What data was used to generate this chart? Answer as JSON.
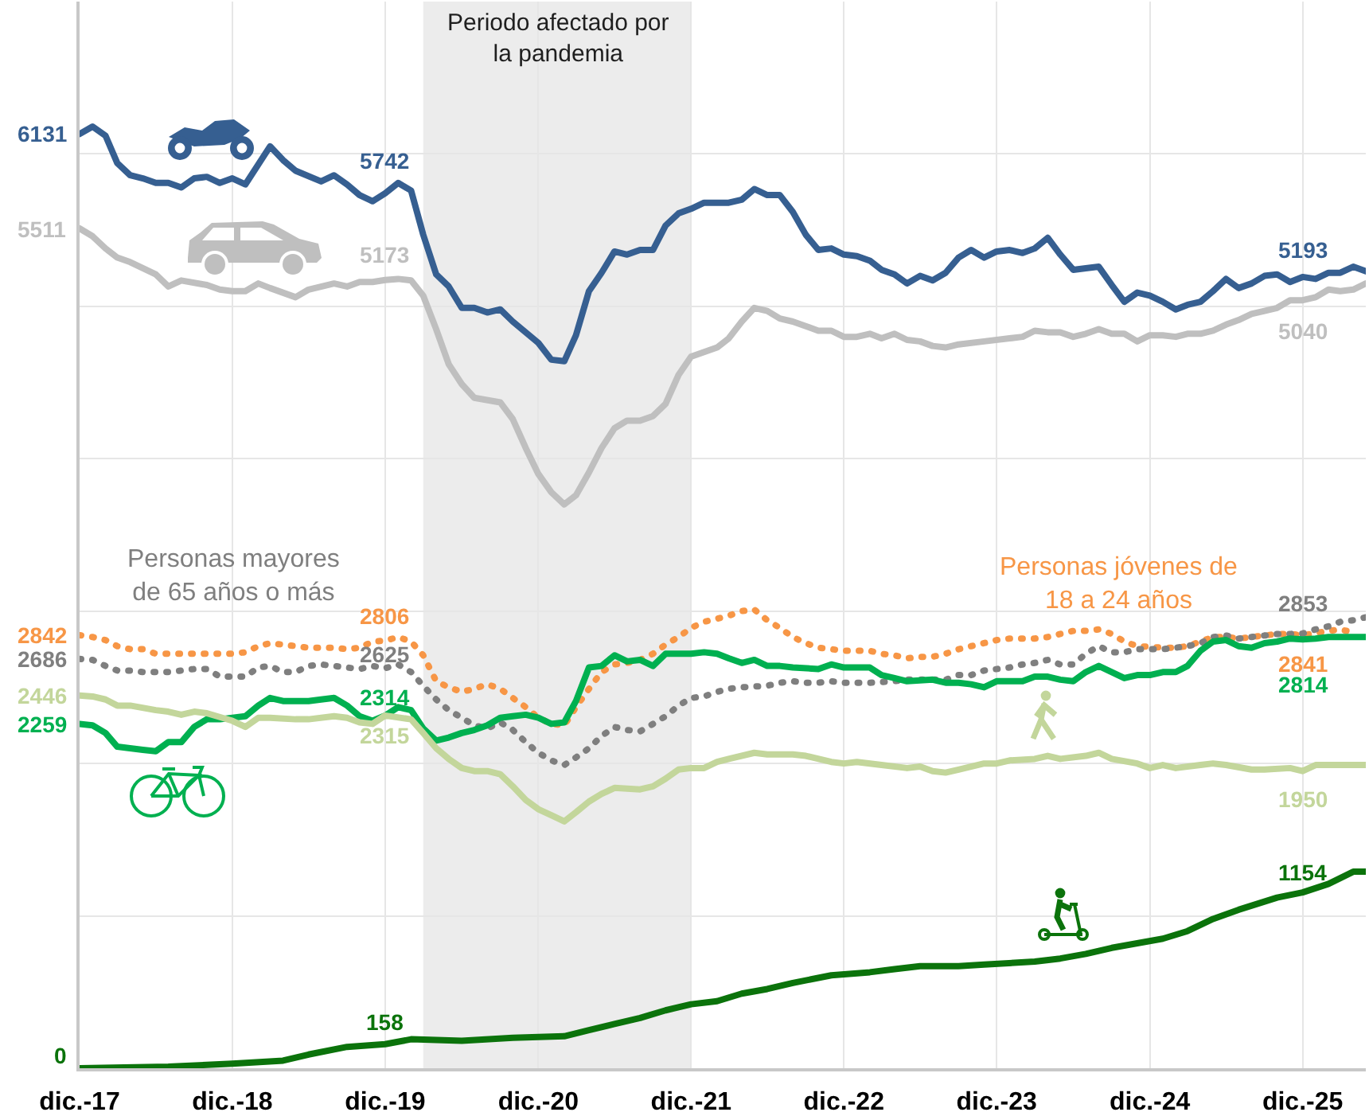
{
  "chart_data": {
    "type": "line",
    "xlim": [
      "2017-12",
      "2026-05"
    ],
    "xticks": [
      {
        "value": "2017-12",
        "label": "dic.-17"
      },
      {
        "value": "2018-12",
        "label": "dic.-18"
      },
      {
        "value": "2019-12",
        "label": "dic.-19"
      },
      {
        "value": "2020-12",
        "label": "dic.-20"
      },
      {
        "value": "2021-12",
        "label": "dic.-21"
      },
      {
        "value": "2022-12",
        "label": "dic.-22"
      },
      {
        "value": "2023-12",
        "label": "dic.-23"
      },
      {
        "value": "2024-12",
        "label": "dic.-24"
      },
      {
        "value": "2025-12",
        "label": "dic.-25"
      }
    ],
    "ylim": [
      0,
      7000
    ],
    "yticks": [
      {
        "value": 0,
        "label": null
      },
      {
        "value": 1000,
        "label": null
      },
      {
        "value": 2000,
        "label": null
      },
      {
        "value": 3000,
        "label": null
      },
      {
        "value": 4000,
        "label": null
      },
      {
        "value": 5000,
        "label": null
      },
      {
        "value": 6000,
        "label": null
      },
      {
        "value": 7000,
        "label": null
      }
    ],
    "tick_labels": "x",
    "grid": true,
    "bands": [
      {
        "axis": "x",
        "from": "2020-03",
        "to": "2021-12",
        "label": "Periodo afectado por\nla pandemia",
        "color": "#ececec"
      }
    ],
    "series": [
      {
        "color": "#365f91",
        "line_style": "solid",
        "x": [
          "2017-12",
          "2018-01",
          "2018-02",
          "2018-03",
          "2018-04",
          "2018-05",
          "2018-06",
          "2018-07",
          "2018-08",
          "2018-09",
          "2018-10",
          "2018-11",
          "2018-12",
          "2019-01",
          "2019-03",
          "2019-04",
          "2019-05",
          "2019-07",
          "2019-08",
          "2019-09",
          "2019-10",
          "2019-11",
          "2019-12",
          "2020-01",
          "2020-02",
          "2020-03",
          "2020-04",
          "2020-05",
          "2020-06",
          "2020-07",
          "2020-08",
          "2020-09",
          "2020-10",
          "2020-12",
          "2021-01",
          "2021-02",
          "2021-03",
          "2021-04",
          "2021-05",
          "2021-06",
          "2021-07",
          "2021-08",
          "2021-09",
          "2021-10",
          "2021-11",
          "2021-12",
          "2022-01",
          "2022-03",
          "2022-04",
          "2022-05",
          "2022-06",
          "2022-07",
          "2022-08",
          "2022-09",
          "2022-10",
          "2022-11",
          "2022-12",
          "2023-01",
          "2023-02",
          "2023-03",
          "2023-04",
          "2023-05",
          "2023-06",
          "2023-07",
          "2023-08",
          "2023-09",
          "2023-10",
          "2023-11",
          "2023-12",
          "2024-01",
          "2024-02",
          "2024-03",
          "2024-04",
          "2024-05",
          "2024-06",
          "2024-07",
          "2024-08",
          "2024-09",
          "2024-10",
          "2024-11",
          "2024-12",
          "2025-01",
          "2025-02",
          "2025-03",
          "2025-04",
          "2025-05",
          "2025-06",
          "2025-07",
          "2025-08",
          "2025-09",
          "2025-10",
          "2025-11",
          "2025-12",
          "2026-01",
          "2026-02",
          "2026-03",
          "2026-04",
          "2026-05"
        ],
        "values": [
          6131,
          6180,
          6120,
          5940,
          5860,
          5840,
          5810,
          5810,
          5780,
          5840,
          5850,
          5810,
          5840,
          5800,
          6050,
          5960,
          5890,
          5820,
          5860,
          5800,
          5730,
          5690,
          5742,
          5810,
          5760,
          5470,
          5210,
          5130,
          4990,
          4990,
          4960,
          4980,
          4900,
          4760,
          4650,
          4640,
          4810,
          5100,
          5220,
          5360,
          5340,
          5370,
          5370,
          5530,
          5610,
          5640,
          5680,
          5680,
          5700,
          5770,
          5730,
          5730,
          5620,
          5470,
          5370,
          5380,
          5340,
          5330,
          5300,
          5240,
          5210,
          5150,
          5200,
          5170,
          5220,
          5320,
          5370,
          5320,
          5360,
          5370,
          5350,
          5380,
          5450,
          5340,
          5240,
          5250,
          5260,
          5140,
          5030,
          5090,
          5070,
          5030,
          4980,
          5010,
          5030,
          5100,
          5180,
          5120,
          5150,
          5200,
          5210,
          5160,
          5193,
          5180,
          5220,
          5220,
          5260,
          5230
        ],
        "value_labels": [
          "6131",
          null,
          null,
          null,
          null,
          null,
          null,
          null,
          null,
          null,
          null,
          null,
          null,
          null,
          null,
          null,
          null,
          null,
          null,
          null,
          null,
          null,
          "5742",
          null,
          null,
          null,
          null,
          null,
          null,
          null,
          null,
          null,
          null,
          null,
          null,
          null,
          null,
          null,
          null,
          null,
          null,
          null,
          null,
          null,
          null,
          null,
          null,
          null,
          null,
          null,
          null,
          null,
          null,
          null,
          null,
          null,
          null,
          null,
          null,
          null,
          null,
          null,
          null,
          null,
          null,
          null,
          null,
          null,
          null,
          null,
          null,
          null,
          null,
          null,
          null,
          null,
          null,
          null,
          null,
          null,
          null,
          null,
          null,
          null,
          null,
          null,
          null,
          null,
          null,
          null,
          null,
          null,
          "5193",
          null,
          null,
          null,
          null,
          null
        ]
      },
      {
        "color": "#bfbfbf",
        "line_style": "solid",
        "x": [
          "2017-12",
          "2018-01",
          "2018-02",
          "2018-03",
          "2018-04",
          "2018-06",
          "2018-07",
          "2018-08",
          "2018-10",
          "2018-11",
          "2018-12",
          "2019-01",
          "2019-02",
          "2019-03",
          "2019-05",
          "2019-06",
          "2019-08",
          "2019-09",
          "2019-10",
          "2019-11",
          "2019-12",
          "2020-01",
          "2020-02",
          "2020-03",
          "2020-04",
          "2020-05",
          "2020-06",
          "2020-07",
          "2020-09",
          "2020-10",
          "2020-11",
          "2020-12",
          "2021-01",
          "2021-02",
          "2021-03",
          "2021-04",
          "2021-05",
          "2021-06",
          "2021-07",
          "2021-08",
          "2021-09",
          "2021-10",
          "2021-11",
          "2021-12",
          "2022-02",
          "2022-03",
          "2022-04",
          "2022-05",
          "2022-06",
          "2022-07",
          "2022-08",
          "2022-09",
          "2022-10",
          "2022-11",
          "2022-12",
          "2023-01",
          "2023-02",
          "2023-03",
          "2023-04",
          "2023-05",
          "2023-06",
          "2023-07",
          "2023-08",
          "2023-09",
          "2023-11",
          "2024-01",
          "2024-02",
          "2024-03",
          "2024-04",
          "2024-05",
          "2024-06",
          "2024-07",
          "2024-08",
          "2024-09",
          "2024-10",
          "2024-11",
          "2024-12",
          "2025-01",
          "2025-02",
          "2025-03",
          "2025-04",
          "2025-05",
          "2025-06",
          "2025-07",
          "2025-08",
          "2025-09",
          "2025-10",
          "2025-11",
          "2025-12",
          "2026-01",
          "2026-02",
          "2026-03",
          "2026-04",
          "2026-05"
        ],
        "values": [
          5511,
          5460,
          5380,
          5320,
          5290,
          5210,
          5130,
          5170,
          5140,
          5110,
          5100,
          5100,
          5150,
          5120,
          5060,
          5110,
          5150,
          5130,
          5160,
          5160,
          5173,
          5180,
          5170,
          5070,
          4850,
          4620,
          4490,
          4400,
          4370,
          4260,
          4070,
          3900,
          3780,
          3700,
          3760,
          3910,
          4070,
          4200,
          4250,
          4250,
          4280,
          4360,
          4550,
          4670,
          4730,
          4790,
          4900,
          4990,
          4970,
          4920,
          4900,
          4870,
          4840,
          4840,
          4800,
          4800,
          4820,
          4790,
          4820,
          4780,
          4770,
          4740,
          4730,
          4750,
          4770,
          4790,
          4800,
          4840,
          4830,
          4830,
          4800,
          4820,
          4850,
          4820,
          4820,
          4770,
          4810,
          4810,
          4800,
          4820,
          4820,
          4840,
          4880,
          4910,
          4950,
          4970,
          4990,
          5040,
          5040,
          5060,
          5110,
          5100,
          5110,
          5150
        ],
        "value_labels": [
          "5511",
          null,
          null,
          null,
          null,
          null,
          null,
          null,
          null,
          null,
          null,
          null,
          null,
          null,
          null,
          null,
          null,
          null,
          null,
          null,
          "5173",
          null,
          null,
          null,
          null,
          null,
          null,
          null,
          null,
          null,
          null,
          null,
          null,
          null,
          null,
          null,
          null,
          null,
          null,
          null,
          null,
          null,
          null,
          null,
          null,
          null,
          null,
          null,
          null,
          null,
          null,
          null,
          null,
          null,
          null,
          null,
          null,
          null,
          null,
          null,
          null,
          null,
          null,
          null,
          null,
          null,
          null,
          null,
          null,
          null,
          null,
          null,
          null,
          null,
          null,
          null,
          null,
          null,
          null,
          null,
          null,
          null,
          null,
          null,
          null,
          null,
          null,
          null,
          "5040",
          null,
          null,
          null,
          null,
          null
        ]
      },
      {
        "name": "Personas jóvenes de\n18 a 24 años",
        "color": "#f79646",
        "line_style": "dotted",
        "x": [
          "2017-12",
          "2018-01",
          "2018-02",
          "2018-03",
          "2018-04",
          "2018-05",
          "2018-06",
          "2018-07",
          "2018-09",
          "2018-11",
          "2018-12",
          "2019-01",
          "2019-02",
          "2019-03",
          "2019-05",
          "2019-06",
          "2019-08",
          "2019-09",
          "2019-10",
          "2019-11",
          "2019-12",
          "2020-01",
          "2020-02",
          "2020-03",
          "2020-04",
          "2020-05",
          "2020-06",
          "2020-07",
          "2020-08",
          "2020-09",
          "2020-10",
          "2020-11",
          "2020-12",
          "2021-01",
          "2021-02",
          "2021-03",
          "2021-04",
          "2021-05",
          "2021-06",
          "2021-07",
          "2021-08",
          "2021-09",
          "2021-10",
          "2021-11",
          "2021-12",
          "2022-01",
          "2022-02",
          "2022-03",
          "2022-04",
          "2022-05",
          "2022-06",
          "2022-07",
          "2022-08",
          "2022-09",
          "2022-10",
          "2022-11",
          "2022-12",
          "2023-02",
          "2023-03",
          "2023-04",
          "2023-05",
          "2023-06",
          "2023-07",
          "2023-08",
          "2023-09",
          "2023-10",
          "2023-11",
          "2023-12",
          "2024-01",
          "2024-03",
          "2024-04",
          "2024-05",
          "2024-06",
          "2024-07",
          "2024-08",
          "2024-09",
          "2024-10",
          "2024-11",
          "2025-01",
          "2025-02",
          "2025-03",
          "2025-04",
          "2025-05",
          "2025-06",
          "2025-07",
          "2025-08",
          "2025-09",
          "2025-10",
          "2025-11",
          "2025-12",
          "2026-02",
          "2026-03",
          "2026-04"
        ],
        "values": [
          2842,
          2830,
          2810,
          2770,
          2750,
          2750,
          2720,
          2720,
          2720,
          2720,
          2720,
          2730,
          2770,
          2790,
          2770,
          2760,
          2760,
          2750,
          2760,
          2800,
          2806,
          2830,
          2800,
          2710,
          2540,
          2500,
          2470,
          2490,
          2520,
          2490,
          2430,
          2370,
          2300,
          2260,
          2250,
          2370,
          2490,
          2600,
          2650,
          2660,
          2680,
          2720,
          2780,
          2830,
          2890,
          2930,
          2950,
          2970,
          3000,
          3010,
          2940,
          2890,
          2830,
          2790,
          2760,
          2750,
          2740,
          2740,
          2720,
          2710,
          2690,
          2700,
          2700,
          2720,
          2750,
          2770,
          2790,
          2810,
          2820,
          2820,
          2830,
          2850,
          2870,
          2870,
          2880,
          2850,
          2800,
          2770,
          2760,
          2760,
          2770,
          2800,
          2830,
          2830,
          2820,
          2830,
          2840,
          2850,
          2850,
          2841,
          2870,
          2880,
          2860
        ],
        "value_labels": [
          "2842",
          null,
          null,
          null,
          null,
          null,
          null,
          null,
          null,
          null,
          null,
          null,
          null,
          null,
          null,
          null,
          null,
          null,
          null,
          null,
          "2806",
          null,
          null,
          null,
          null,
          null,
          null,
          null,
          null,
          null,
          null,
          null,
          null,
          null,
          null,
          null,
          null,
          null,
          null,
          null,
          null,
          null,
          null,
          null,
          null,
          null,
          null,
          null,
          null,
          null,
          null,
          null,
          null,
          null,
          null,
          null,
          null,
          null,
          null,
          null,
          null,
          null,
          null,
          null,
          null,
          null,
          null,
          null,
          null,
          null,
          null,
          null,
          null,
          null,
          null,
          null,
          null,
          null,
          null,
          null,
          null,
          null,
          null,
          null,
          null,
          null,
          null,
          null,
          null,
          "2841",
          null,
          null,
          null
        ]
      },
      {
        "name": "Personas mayores\nde 65 años o más",
        "color": "#7f7f7f",
        "line_style": "dotted",
        "x": [
          "2017-12",
          "2018-01",
          "2018-02",
          "2018-03",
          "2018-04",
          "2018-05",
          "2018-07",
          "2018-08",
          "2018-09",
          "2018-10",
          "2018-11",
          "2018-12",
          "2019-01",
          "2019-02",
          "2019-03",
          "2019-04",
          "2019-05",
          "2019-06",
          "2019-07",
          "2019-08",
          "2019-10",
          "2019-11",
          "2019-12",
          "2020-01",
          "2020-02",
          "2020-03",
          "2020-04",
          "2020-05",
          "2020-06",
          "2020-07",
          "2020-08",
          "2020-09",
          "2020-10",
          "2020-11",
          "2020-12",
          "2021-01",
          "2021-02",
          "2021-03",
          "2021-04",
          "2021-05",
          "2021-06",
          "2021-07",
          "2021-08",
          "2021-09",
          "2021-10",
          "2021-11",
          "2021-12",
          "2022-01",
          "2022-02",
          "2022-03",
          "2022-04",
          "2022-06",
          "2022-07",
          "2022-08",
          "2022-09",
          "2022-10",
          "2022-11",
          "2022-12",
          "2023-02",
          "2023-04",
          "2023-05",
          "2023-07",
          "2023-08",
          "2023-09",
          "2023-10",
          "2023-11",
          "2024-01",
          "2024-02",
          "2024-03",
          "2024-04",
          "2024-05",
          "2024-06",
          "2024-07",
          "2024-08",
          "2024-09",
          "2024-10",
          "2024-11",
          "2025-01",
          "2025-02",
          "2025-03",
          "2025-04",
          "2025-05",
          "2025-06",
          "2025-07",
          "2025-08",
          "2025-09",
          "2025-10",
          "2025-11",
          "2025-12",
          "2026-01",
          "2026-02",
          "2026-03",
          "2026-04",
          "2026-05"
        ],
        "values": [
          2686,
          2680,
          2640,
          2610,
          2610,
          2600,
          2600,
          2610,
          2620,
          2620,
          2570,
          2570,
          2570,
          2630,
          2640,
          2600,
          2600,
          2640,
          2650,
          2640,
          2620,
          2640,
          2625,
          2650,
          2600,
          2510,
          2420,
          2350,
          2300,
          2250,
          2230,
          2270,
          2220,
          2140,
          2070,
          2020,
          1990,
          2040,
          2100,
          2180,
          2240,
          2220,
          2210,
          2260,
          2310,
          2380,
          2430,
          2440,
          2470,
          2490,
          2500,
          2510,
          2530,
          2540,
          2530,
          2530,
          2540,
          2530,
          2530,
          2540,
          2550,
          2550,
          2550,
          2580,
          2580,
          2610,
          2630,
          2650,
          2660,
          2680,
          2650,
          2650,
          2720,
          2770,
          2730,
          2730,
          2750,
          2750,
          2760,
          2770,
          2790,
          2830,
          2840,
          2820,
          2830,
          2840,
          2850,
          2850,
          2853,
          2880,
          2900,
          2930,
          2940,
          2960
        ],
        "value_labels": [
          "2686",
          null,
          null,
          null,
          null,
          null,
          null,
          null,
          null,
          null,
          null,
          null,
          null,
          null,
          null,
          null,
          null,
          null,
          null,
          null,
          null,
          null,
          "2625",
          null,
          null,
          null,
          null,
          null,
          null,
          null,
          null,
          null,
          null,
          null,
          null,
          null,
          null,
          null,
          null,
          null,
          null,
          null,
          null,
          null,
          null,
          null,
          null,
          null,
          null,
          null,
          null,
          null,
          null,
          null,
          null,
          null,
          null,
          null,
          null,
          null,
          null,
          null,
          null,
          null,
          null,
          null,
          null,
          null,
          null,
          null,
          null,
          null,
          null,
          null,
          null,
          null,
          null,
          null,
          null,
          null,
          null,
          null,
          null,
          null,
          null,
          null,
          null,
          null,
          "2853",
          null,
          null,
          null,
          null,
          null
        ]
      },
      {
        "color": "#00b050",
        "line_style": "solid",
        "x": [
          "2017-12",
          "2018-01",
          "2018-02",
          "2018-03",
          "2018-05",
          "2018-06",
          "2018-07",
          "2018-08",
          "2018-09",
          "2018-10",
          "2018-11",
          "2019-01",
          "2019-02",
          "2019-03",
          "2019-04",
          "2019-06",
          "2019-07",
          "2019-08",
          "2019-09",
          "2019-10",
          "2019-11",
          "2019-12",
          "2020-01",
          "2020-02",
          "2020-03",
          "2020-04",
          "2020-05",
          "2020-06",
          "2020-07",
          "2020-08",
          "2020-09",
          "2020-10",
          "2020-11",
          "2020-12",
          "2021-01",
          "2021-02",
          "2021-03",
          "2021-04",
          "2021-05",
          "2021-06",
          "2021-07",
          "2021-08",
          "2021-09",
          "2021-10",
          "2021-11",
          "2021-12",
          "2022-01",
          "2022-02",
          "2022-03",
          "2022-04",
          "2022-05",
          "2022-06",
          "2022-07",
          "2022-08",
          "2022-10",
          "2022-11",
          "2022-12",
          "2023-02",
          "2023-03",
          "2023-04",
          "2023-05",
          "2023-07",
          "2023-08",
          "2023-09",
          "2023-10",
          "2023-11",
          "2023-12",
          "2024-01",
          "2024-02",
          "2024-03",
          "2024-04",
          "2024-05",
          "2024-06",
          "2024-07",
          "2024-08",
          "2024-09",
          "2024-10",
          "2024-11",
          "2024-12",
          "2025-01",
          "2025-02",
          "2025-03",
          "2025-04",
          "2025-05",
          "2025-06",
          "2025-07",
          "2025-08",
          "2025-09",
          "2025-10",
          "2025-11",
          "2025-12",
          "2026-01",
          "2026-02",
          "2026-04",
          "2026-05"
        ],
        "values": [
          2259,
          2250,
          2200,
          2110,
          2090,
          2080,
          2140,
          2140,
          2240,
          2290,
          2290,
          2310,
          2380,
          2430,
          2410,
          2410,
          2420,
          2430,
          2380,
          2310,
          2280,
          2314,
          2370,
          2350,
          2230,
          2150,
          2170,
          2200,
          2220,
          2250,
          2300,
          2310,
          2320,
          2300,
          2260,
          2270,
          2410,
          2630,
          2640,
          2710,
          2670,
          2680,
          2640,
          2720,
          2720,
          2720,
          2730,
          2720,
          2690,
          2660,
          2680,
          2640,
          2640,
          2630,
          2620,
          2650,
          2630,
          2630,
          2580,
          2560,
          2540,
          2550,
          2530,
          2530,
          2520,
          2500,
          2540,
          2540,
          2540,
          2570,
          2570,
          2550,
          2540,
          2600,
          2640,
          2600,
          2560,
          2580,
          2580,
          2600,
          2600,
          2640,
          2740,
          2800,
          2810,
          2770,
          2760,
          2790,
          2800,
          2820,
          2814,
          2820,
          2830,
          2830,
          2830
        ],
        "value_labels": [
          "2259",
          null,
          null,
          null,
          null,
          null,
          null,
          null,
          null,
          null,
          null,
          null,
          null,
          null,
          null,
          null,
          null,
          null,
          null,
          null,
          null,
          "2314",
          null,
          null,
          null,
          null,
          null,
          null,
          null,
          null,
          null,
          null,
          null,
          null,
          null,
          null,
          null,
          null,
          null,
          null,
          null,
          null,
          null,
          null,
          null,
          null,
          null,
          null,
          null,
          null,
          null,
          null,
          null,
          null,
          null,
          null,
          null,
          null,
          null,
          null,
          null,
          null,
          null,
          null,
          null,
          null,
          null,
          null,
          null,
          null,
          null,
          null,
          null,
          null,
          null,
          null,
          null,
          null,
          null,
          null,
          null,
          null,
          null,
          null,
          null,
          null,
          null,
          null,
          null,
          null,
          "2814",
          null,
          null,
          null,
          null
        ]
      },
      {
        "color": "#c3d69b",
        "line_style": "solid",
        "x": [
          "2017-12",
          "2018-01",
          "2018-02",
          "2018-03",
          "2018-04",
          "2018-06",
          "2018-07",
          "2018-08",
          "2018-09",
          "2018-10",
          "2018-12",
          "2019-01",
          "2019-02",
          "2019-03",
          "2019-05",
          "2019-06",
          "2019-08",
          "2019-09",
          "2019-10",
          "2019-11",
          "2019-12",
          "2020-02",
          "2020-03",
          "2020-04",
          "2020-05",
          "2020-06",
          "2020-07",
          "2020-08",
          "2020-09",
          "2020-10",
          "2020-11",
          "2020-12",
          "2021-01",
          "2021-02",
          "2021-03",
          "2021-04",
          "2021-05",
          "2021-06",
          "2021-08",
          "2021-09",
          "2021-10",
          "2021-11",
          "2021-12",
          "2022-01",
          "2022-02",
          "2022-03",
          "2022-05",
          "2022-06",
          "2022-08",
          "2022-09",
          "2022-11",
          "2022-12",
          "2023-01",
          "2023-03",
          "2023-05",
          "2023-06",
          "2023-07",
          "2023-08",
          "2023-09",
          "2023-11",
          "2023-12",
          "2024-01",
          "2024-03",
          "2024-04",
          "2024-05",
          "2024-07",
          "2024-08",
          "2024-09",
          "2024-11",
          "2024-12",
          "2025-01",
          "2025-02",
          "2025-04",
          "2025-05",
          "2025-06",
          "2025-08",
          "2025-09",
          "2025-11",
          "2025-12",
          "2026-01",
          "2026-03",
          "2026-05"
        ],
        "values": [
          2446,
          2440,
          2420,
          2380,
          2380,
          2350,
          2340,
          2320,
          2340,
          2330,
          2280,
          2240,
          2300,
          2300,
          2290,
          2290,
          2310,
          2300,
          2270,
          2260,
          2315,
          2290,
          2200,
          2100,
          2030,
          1970,
          1950,
          1950,
          1930,
          1850,
          1760,
          1700,
          1660,
          1620,
          1680,
          1750,
          1800,
          1840,
          1830,
          1850,
          1900,
          1960,
          1970,
          1970,
          2010,
          2030,
          2070,
          2060,
          2060,
          2050,
          2010,
          2000,
          2010,
          1990,
          1970,
          1980,
          1950,
          1940,
          1960,
          2000,
          2000,
          2020,
          2030,
          2050,
          2030,
          2050,
          2070,
          2030,
          2000,
          1970,
          1990,
          1970,
          1990,
          2000,
          1990,
          1960,
          1960,
          1970,
          1950,
          1990,
          1990,
          1990
        ],
        "value_labels": [
          "2446",
          null,
          null,
          null,
          null,
          null,
          null,
          null,
          null,
          null,
          null,
          null,
          null,
          null,
          null,
          null,
          null,
          null,
          null,
          null,
          "2315",
          null,
          null,
          null,
          null,
          null,
          null,
          null,
          null,
          null,
          null,
          null,
          null,
          null,
          null,
          null,
          null,
          null,
          null,
          null,
          null,
          null,
          null,
          null,
          null,
          null,
          null,
          null,
          null,
          null,
          null,
          null,
          null,
          null,
          null,
          null,
          null,
          null,
          null,
          null,
          null,
          null,
          null,
          null,
          null,
          null,
          null,
          null,
          null,
          null,
          null,
          null,
          null,
          null,
          null,
          null,
          null,
          null,
          "1950",
          null,
          null,
          null
        ]
      },
      {
        "color": "#0b730b",
        "line_style": "solid",
        "x": [
          "2017-12",
          "2018-07",
          "2018-12",
          "2019-04",
          "2019-06",
          "2019-09",
          "2019-12",
          "2020-02",
          "2020-06",
          "2020-10",
          "2021-02",
          "2021-04",
          "2021-06",
          "2021-08",
          "2021-10",
          "2021-12",
          "2022-02",
          "2022-04",
          "2022-06",
          "2022-08",
          "2022-11",
          "2023-02",
          "2023-04",
          "2023-06",
          "2023-09",
          "2023-11",
          "2024-03",
          "2024-05",
          "2024-07",
          "2024-09",
          "2024-11",
          "2025-01",
          "2025-03",
          "2025-05",
          "2025-07",
          "2025-10",
          "2025-12",
          "2026-02",
          "2026-04",
          "2026-05"
        ],
        "values": [
          0,
          10,
          30,
          50,
          90,
          140,
          158,
          190,
          180,
          200,
          210,
          250,
          290,
          330,
          380,
          420,
          440,
          490,
          520,
          560,
          610,
          630,
          650,
          670,
          670,
          680,
          700,
          720,
          750,
          790,
          820,
          850,
          900,
          980,
          1040,
          1120,
          1154,
          1210,
          1290,
          1290
        ],
        "value_labels": [
          "0",
          null,
          null,
          null,
          null,
          null,
          "158",
          null,
          null,
          null,
          null,
          null,
          null,
          null,
          null,
          null,
          null,
          null,
          null,
          null,
          null,
          null,
          null,
          null,
          null,
          null,
          null,
          null,
          null,
          null,
          null,
          null,
          null,
          null,
          null,
          null,
          "1154",
          null,
          null,
          null
        ]
      }
    ]
  }
}
